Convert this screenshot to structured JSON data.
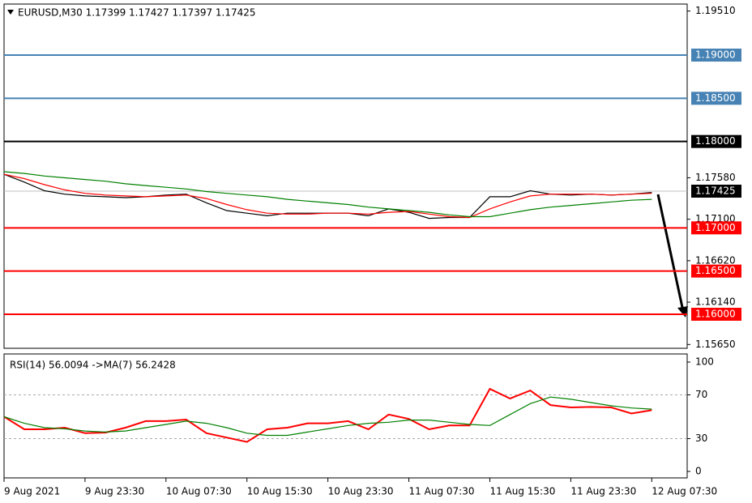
{
  "chart_data": [
    {
      "type": "line",
      "title": "EURUSD,M30  1.17399 1.17427 1.17397 1.17425",
      "x": [
        0,
        4,
        8,
        12,
        16,
        20,
        24,
        28,
        32,
        36,
        40,
        44,
        48,
        52,
        56,
        60,
        64,
        68,
        72,
        76,
        80,
        84,
        88,
        92,
        96,
        100,
        104,
        108,
        112,
        116,
        120,
        124,
        128
      ],
      "series": [
        {
          "color": "#000000",
          "values": [
            1.1762,
            1.1753,
            1.1743,
            1.1739,
            1.1737,
            1.1736,
            1.1735,
            1.1736,
            1.1738,
            1.1739,
            1.1729,
            1.172,
            1.1717,
            1.1714,
            1.1717,
            1.1717,
            1.1717,
            1.1717,
            1.1714,
            1.1722,
            1.1718,
            1.1711,
            1.1712,
            1.1712,
            1.1736,
            1.1736,
            1.1743,
            1.1739,
            1.1738,
            1.1739,
            1.1738,
            1.1739,
            1.1741
          ]
        },
        {
          "color": "#ff0000",
          "values": [
            1.1762,
            1.1757,
            1.175,
            1.1744,
            1.174,
            1.1738,
            1.1737,
            1.1736,
            1.1737,
            1.1738,
            1.1734,
            1.1727,
            1.1721,
            1.1717,
            1.1716,
            1.1716,
            1.1717,
            1.1717,
            1.1716,
            1.1718,
            1.1719,
            1.1716,
            1.1713,
            1.1712,
            1.1722,
            1.173,
            1.1737,
            1.1739,
            1.1739,
            1.1739,
            1.1738,
            1.1739,
            1.174
          ]
        },
        {
          "color": "#008000",
          "values": [
            1.1765,
            1.1763,
            1.176,
            1.1758,
            1.1756,
            1.1754,
            1.1751,
            1.1749,
            1.1747,
            1.1745,
            1.1742,
            1.174,
            1.1738,
            1.1736,
            1.1733,
            1.1731,
            1.1729,
            1.1727,
            1.1724,
            1.1722,
            1.172,
            1.1718,
            1.1715,
            1.1713,
            1.1713,
            1.1717,
            1.1721,
            1.1724,
            1.1726,
            1.1728,
            1.173,
            1.1732,
            1.1733
          ]
        }
      ],
      "xlim": [
        0,
        135
      ],
      "ylim": [
        1.15606,
        1.19591
      ],
      "yticks": [
        {
          "value": 1.1951,
          "label": "1.19510"
        },
        {
          "value": 1.1758,
          "label": "1.17580"
        },
        {
          "value": 1.171,
          "label": "1.17100"
        },
        {
          "value": 1.1662,
          "label": "1.16620"
        },
        {
          "value": 1.1614,
          "label": "1.16140"
        },
        {
          "value": 1.1565,
          "label": "1.15650"
        }
      ],
      "levels": [
        {
          "value": 1.19,
          "label": "1.19000",
          "color": "#4682b4"
        },
        {
          "value": 1.185,
          "label": "1.18500",
          "color": "#4682b4"
        },
        {
          "value": 1.18,
          "label": "1.18000",
          "color": "#000000"
        },
        {
          "value": 1.17,
          "label": "1.17000",
          "color": "#ff0000"
        },
        {
          "value": 1.165,
          "label": "1.16500",
          "color": "#ff0000"
        },
        {
          "value": 1.16,
          "label": "1.16000",
          "color": "#ff0000"
        }
      ],
      "last_price": {
        "value": 1.17425,
        "label": "1.17425"
      }
    },
    {
      "type": "line",
      "title": "RSI(14) 56.0094  ->MA(7) 56.2428",
      "x": [
        0,
        4,
        8,
        12,
        16,
        20,
        24,
        28,
        32,
        36,
        40,
        44,
        48,
        52,
        56,
        60,
        64,
        68,
        72,
        76,
        80,
        84,
        88,
        92,
        96,
        100,
        104,
        108,
        112,
        116,
        120,
        124,
        128
      ],
      "series": [
        {
          "color": "#ff0000",
          "values": [
            50,
            38.5,
            38.5,
            40,
            35,
            35.5,
            40,
            46,
            46,
            47.4,
            35,
            31,
            27,
            38.5,
            40,
            44,
            44,
            46,
            38.5,
            52,
            48,
            38.5,
            42,
            42,
            75.5,
            66.7,
            74,
            60.7,
            58.5,
            59,
            58.5,
            53,
            56
          ]
        },
        {
          "color": "#008000",
          "values": [
            50,
            44,
            40,
            39,
            37,
            36,
            37,
            40,
            43,
            46,
            44,
            40,
            35,
            33,
            33,
            36,
            39,
            42,
            44,
            45,
            47,
            47,
            45,
            43,
            42,
            52,
            62,
            68,
            66,
            63,
            60,
            58,
            57
          ]
        }
      ],
      "xlim": [
        0,
        135
      ],
      "ylim": [
        -5.9,
        107.4
      ],
      "yticks": [
        0,
        30,
        70,
        100
      ],
      "levels": [
        {
          "value": 30
        },
        {
          "value": 70
        }
      ],
      "xticks": [
        {
          "value": 0,
          "label": "9 Aug 2021"
        },
        {
          "value": 16,
          "label": "9 Aug 23:30"
        },
        {
          "value": 32,
          "label": "10 Aug 07:30"
        },
        {
          "value": 48,
          "label": "10 Aug 15:30"
        },
        {
          "value": 64,
          "label": "10 Aug 23:30"
        },
        {
          "value": 80,
          "label": "11 Aug 07:30"
        },
        {
          "value": 96,
          "label": "11 Aug 15:30"
        },
        {
          "value": 112,
          "label": "11 Aug 23:30"
        },
        {
          "value": 128,
          "label": "12 Aug 07:30"
        }
      ]
    }
  ]
}
